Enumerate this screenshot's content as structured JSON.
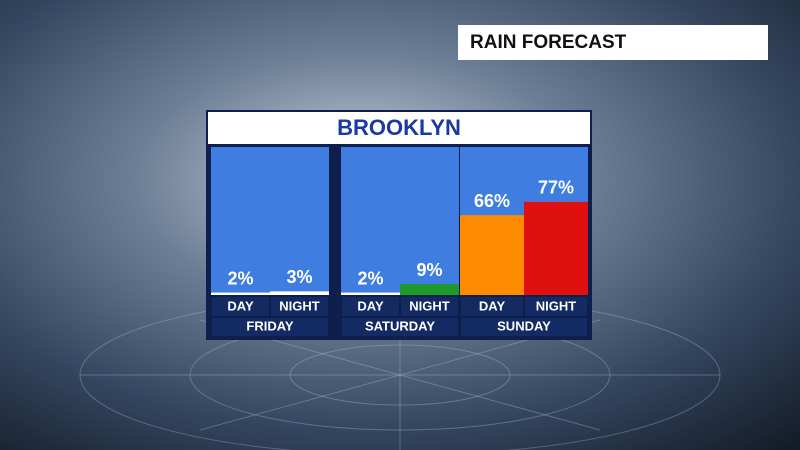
{
  "header": "RAIN FORECAST",
  "chart_data": {
    "type": "bar",
    "title": "BROOKLYN",
    "groups": [
      {
        "name": "FRIDAY",
        "categories": [
          "DAY",
          "NIGHT"
        ],
        "values": [
          2,
          3
        ],
        "value_labels": [
          "2%",
          "3%"
        ],
        "colors": [
          "#ffffff",
          "#ffffff"
        ]
      },
      {
        "name": "SATURDAY",
        "categories": [
          "DAY",
          "NIGHT"
        ],
        "values": [
          2,
          9
        ],
        "value_labels": [
          "2%",
          "9%"
        ],
        "colors": [
          "#ffffff",
          "#1e9a2a"
        ]
      },
      {
        "name": "SUNDAY",
        "categories": [
          "DAY",
          "NIGHT"
        ],
        "values": [
          66,
          77
        ],
        "value_labels": [
          "66%",
          "77%"
        ],
        "colors": [
          "#ff8c00",
          "#e01010"
        ]
      }
    ]
  }
}
